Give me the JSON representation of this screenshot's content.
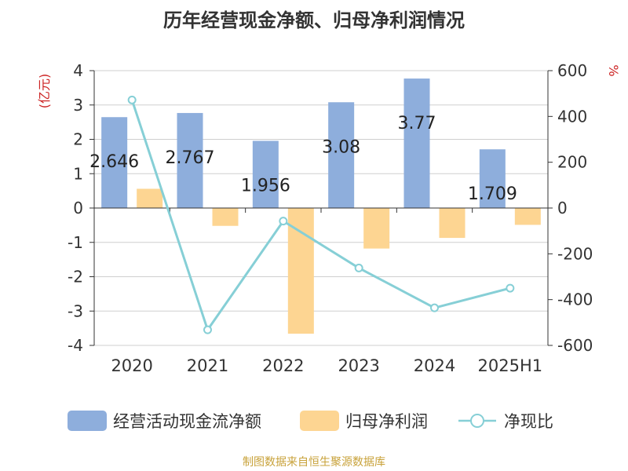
{
  "title": "历年经营现金净额、归母净利润情况",
  "source": "制图数据来自恒生聚源数据库",
  "colors": {
    "cashflow": "#8eaedc",
    "profit": "#fdd592",
    "ratio": "#86cfd6",
    "left_unit": "#cc2222",
    "right_unit": "#cc2222"
  },
  "chart_data": {
    "type": "bar",
    "categories": [
      "2020",
      "2021",
      "2022",
      "2023",
      "2024",
      "2025H1"
    ],
    "left_axis": {
      "unit": "(亿元)",
      "ylim": [
        -4,
        4
      ],
      "ticks": [
        4,
        3,
        2,
        1,
        0,
        -1,
        -2,
        -3,
        -4
      ]
    },
    "right_axis": {
      "unit": "%",
      "ylim": [
        -600,
        600
      ],
      "ticks": [
        600,
        400,
        200,
        0,
        -200,
        -400,
        -600
      ]
    },
    "grid": true,
    "legend_position": "bottom",
    "series": [
      {
        "name": "经营活动现金流净额",
        "type": "bar",
        "axis": "left",
        "values": [
          2.646,
          2.767,
          1.956,
          3.08,
          3.77,
          1.709
        ],
        "labels": [
          "2.646",
          "2.767",
          "1.956",
          "3.08",
          "3.77",
          "1.709"
        ]
      },
      {
        "name": "归母净利润",
        "type": "bar",
        "axis": "left",
        "values": [
          0.56,
          -0.52,
          -3.66,
          -1.18,
          -0.87,
          -0.49
        ]
      },
      {
        "name": "净现比",
        "type": "line",
        "axis": "right",
        "values": [
          472,
          -532,
          -57,
          -262,
          -436,
          -350
        ]
      }
    ]
  }
}
